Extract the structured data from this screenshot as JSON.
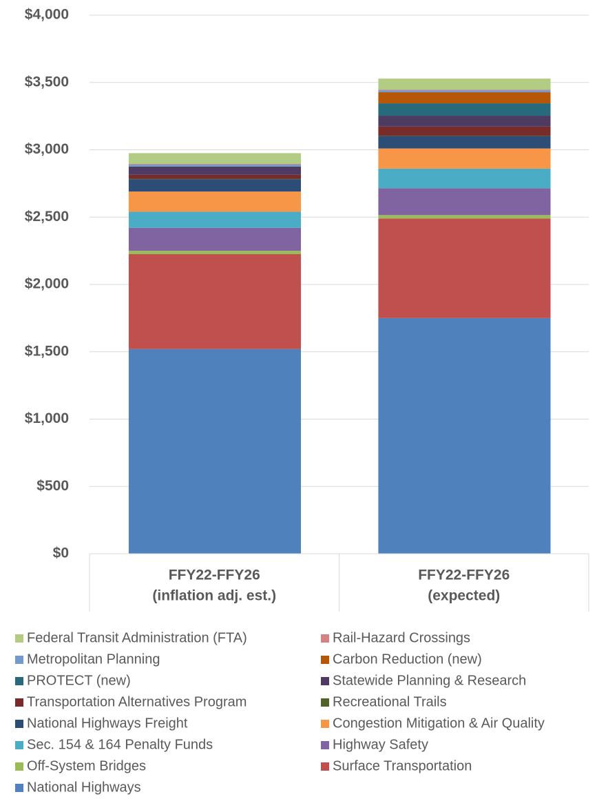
{
  "chart_data": {
    "type": "stacked-bar",
    "categories": [
      [
        "FFY22-FFY26",
        "(inflation adj. est.)"
      ],
      [
        "FFY22-FFY26",
        "(expected)"
      ]
    ],
    "series": [
      {
        "name": "National Highways",
        "color": "#4f81bd",
        "values": [
          1520,
          1750
        ]
      },
      {
        "name": "Surface Transportation",
        "color": "#c0504d",
        "values": [
          705,
          740
        ]
      },
      {
        "name": "Off-System Bridges",
        "color": "#9bbb59",
        "values": [
          25,
          25
        ]
      },
      {
        "name": "Highway Safety",
        "color": "#8064a2",
        "values": [
          170,
          200
        ]
      },
      {
        "name": "Sec. 154 & 164 Penalty Funds",
        "color": "#4bacc6",
        "values": [
          120,
          145
        ]
      },
      {
        "name": "Congestion Mitigation & Air Quality",
        "color": "#f79646",
        "values": [
          150,
          150
        ]
      },
      {
        "name": "National Highways Freight",
        "color": "#2c4d75",
        "values": [
          92,
          92
        ]
      },
      {
        "name": "Recreational Trails",
        "color": "#4f6228",
        "values": [
          3,
          3
        ]
      },
      {
        "name": "Transportation Alternatives Program",
        "color": "#772c2a",
        "values": [
          30,
          68
        ]
      },
      {
        "name": "Statewide Planning & Research",
        "color": "#4d3b62",
        "values": [
          60,
          80
        ]
      },
      {
        "name": "PROTECT (new)",
        "color": "#276a7c",
        "values": [
          0,
          92
        ]
      },
      {
        "name": "Carbon Reduction (new)",
        "color": "#b65708",
        "values": [
          0,
          82
        ]
      },
      {
        "name": "Metropolitan Planning",
        "color": "#729aca",
        "values": [
          15,
          15
        ]
      },
      {
        "name": "Rail-Hazard Crossings",
        "color": "#d38381",
        "values": [
          5,
          5
        ]
      },
      {
        "name": "Federal Transit Administration (FTA)",
        "color": "#b3cc84",
        "values": [
          80,
          82
        ]
      }
    ],
    "ylim": [
      0,
      4000
    ],
    "yticks": [
      {
        "value": 0,
        "label": "$0"
      },
      {
        "value": 500,
        "label": "$500"
      },
      {
        "value": 1000,
        "label": "$1,000"
      },
      {
        "value": 1500,
        "label": "$1,500"
      },
      {
        "value": 2000,
        "label": "$2,000"
      },
      {
        "value": 2500,
        "label": "$2,500"
      },
      {
        "value": 3000,
        "label": "$3,000"
      },
      {
        "value": 3500,
        "label": "$3,500"
      },
      {
        "value": 4000,
        "label": "$4,000"
      }
    ],
    "grid": true,
    "legend": "bottom"
  }
}
